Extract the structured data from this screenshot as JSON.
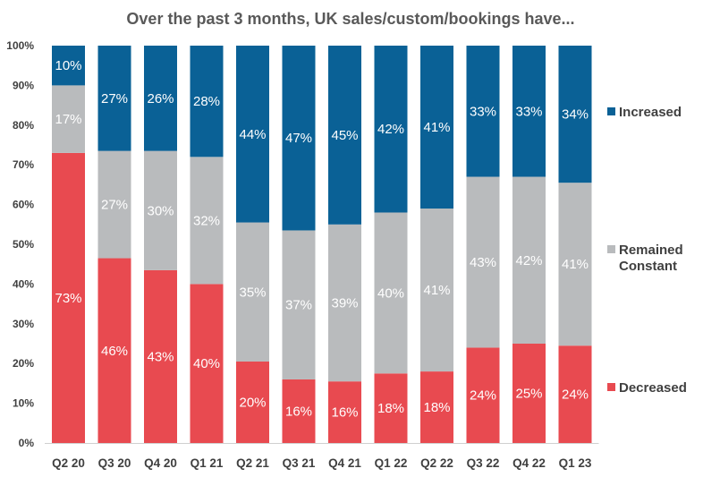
{
  "chart_data": {
    "type": "bar",
    "stacked": true,
    "title": "Over the past 3 months, UK sales/custom/bookings have...",
    "categories": [
      "Q2 20",
      "Q3 20",
      "Q4 20",
      "Q1 21",
      "Q2 21",
      "Q3 21",
      "Q4 21",
      "Q1 22",
      "Q2 22",
      "Q3 22",
      "Q4 22",
      "Q1 23"
    ],
    "series": [
      {
        "name": "Decreased",
        "color": "#e84a50",
        "values": [
          73,
          46,
          43,
          40,
          20,
          16,
          16,
          18,
          18,
          24,
          25,
          24
        ],
        "heights": [
          73,
          46.5,
          43.5,
          40,
          20.5,
          16,
          15.5,
          17.5,
          18,
          24,
          25,
          24.5
        ]
      },
      {
        "name": "Remained Constant",
        "color": "#b9bbbd",
        "values": [
          17,
          27,
          30,
          32,
          35,
          37,
          39,
          40,
          41,
          43,
          42,
          41
        ],
        "heights": [
          17,
          27,
          30,
          32,
          35,
          37.5,
          39.5,
          40.5,
          41,
          43,
          42,
          41
        ]
      },
      {
        "name": "Increased",
        "color": "#0a6196",
        "values": [
          10,
          27,
          26,
          28,
          44,
          47,
          45,
          42,
          41,
          33,
          33,
          34
        ],
        "heights": [
          10,
          26.5,
          26.5,
          28,
          44.5,
          46.5,
          45,
          42,
          41,
          33,
          33,
          34.5
        ]
      }
    ],
    "legend": [
      {
        "lines": [
          "Increased"
        ],
        "color": "#0a6196"
      },
      {
        "lines": [
          "Remained",
          "Constant"
        ],
        "color": "#b9bbbd"
      },
      {
        "lines": [
          "Decreased"
        ],
        "color": "#e84a50"
      }
    ],
    "y_ticks": [
      "0%",
      "10%",
      "20%",
      "30%",
      "40%",
      "50%",
      "60%",
      "70%",
      "80%",
      "90%",
      "100%"
    ],
    "ylim": [
      0,
      100
    ],
    "xlabel": "",
    "ylabel": "",
    "legend_position": "right"
  }
}
